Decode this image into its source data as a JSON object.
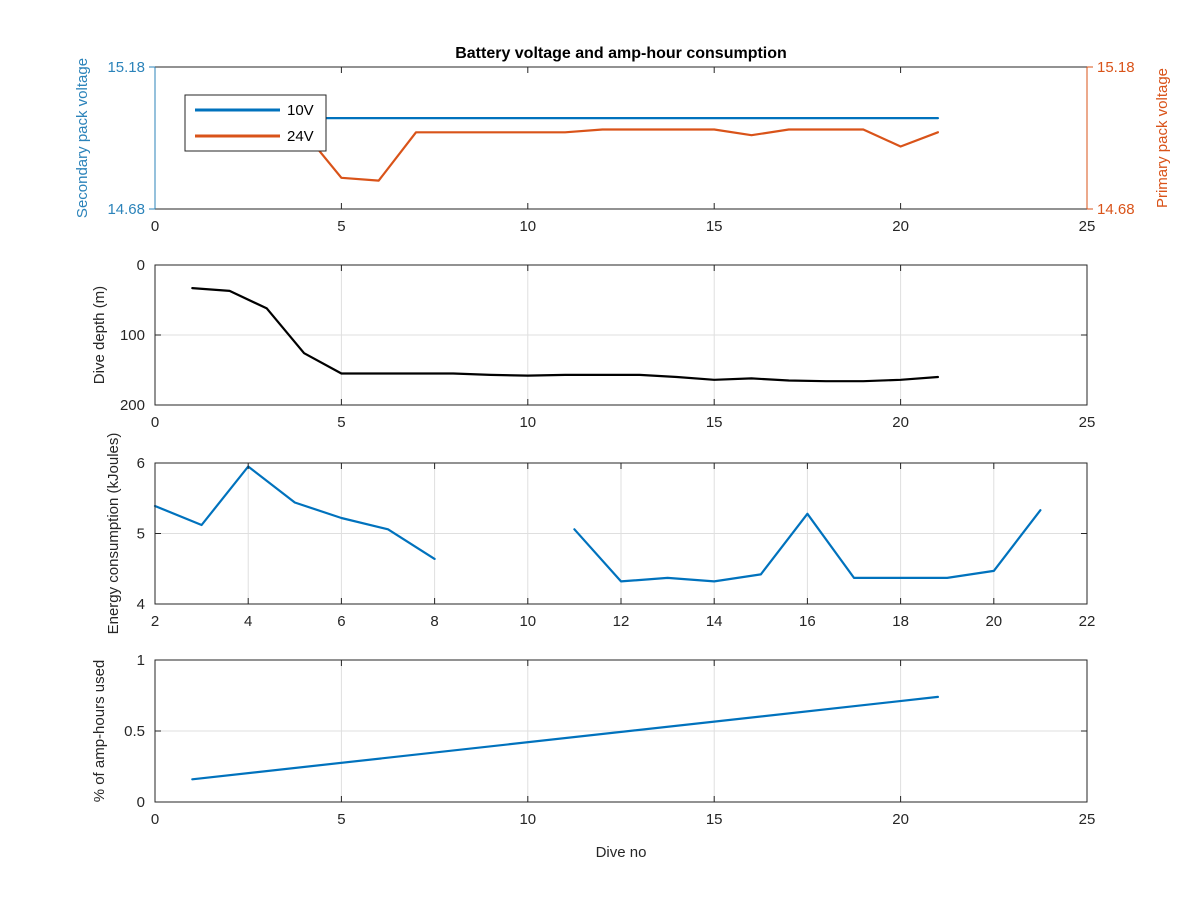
{
  "figure": {
    "background": "#ffffff",
    "axis_color": "#262626",
    "grid_color": "#dfdfdf"
  },
  "chart_data": [
    {
      "type": "line",
      "title": "Battery voltage and amp-hour consumption",
      "xlim": [
        0,
        25
      ],
      "xticks": [
        "0",
        "5",
        "10",
        "15",
        "20",
        "25"
      ],
      "grid": false,
      "legend": {
        "placement": "top-left",
        "entries": [
          "10V",
          "24V"
        ]
      },
      "left_axis": {
        "label": "Secondary pack voltage",
        "ylim": [
          14.68,
          15.18
        ],
        "ticks": [
          "14.68",
          "15.18"
        ],
        "color": "#2b83ba"
      },
      "right_axis": {
        "label": "Primary pack voltage",
        "ylim": [
          14.68,
          15.18
        ],
        "ticks": [
          "14.68",
          "15.18"
        ],
        "color": "#d95319"
      },
      "series": [
        {
          "name": "10V",
          "color": "#0072bd",
          "axis": "left",
          "x": [
            1,
            2,
            3,
            4,
            5,
            6,
            7,
            8,
            9,
            10,
            11,
            12,
            13,
            14,
            15,
            16,
            17,
            18,
            19,
            20,
            21
          ],
          "y": [
            15.0,
            15.0,
            15.0,
            15.0,
            15.0,
            15.0,
            15.0,
            15.0,
            15.0,
            15.0,
            15.0,
            15.0,
            15.0,
            15.0,
            15.0,
            15.0,
            15.0,
            15.0,
            15.0,
            15.0,
            15.0
          ]
        },
        {
          "name": "24V",
          "color": "#d95319",
          "axis": "right",
          "x": [
            1,
            2,
            3,
            4,
            5,
            6,
            7,
            8,
            9,
            10,
            11,
            12,
            13,
            14,
            15,
            16,
            17,
            18,
            19,
            20,
            21
          ],
          "y": [
            14.95,
            14.95,
            14.95,
            14.95,
            14.79,
            14.78,
            14.95,
            14.95,
            14.95,
            14.95,
            14.95,
            14.96,
            14.96,
            14.96,
            14.96,
            14.94,
            14.96,
            14.96,
            14.96,
            14.9,
            14.95
          ]
        }
      ]
    },
    {
      "type": "line",
      "ylabel": "Dive depth (m)",
      "xlim": [
        0,
        25
      ],
      "ylim": [
        0,
        200
      ],
      "y_reversed": true,
      "xticks": [
        "0",
        "5",
        "10",
        "15",
        "20",
        "25"
      ],
      "yticks": [
        "0",
        "100",
        "200"
      ],
      "grid": true,
      "series": [
        {
          "color": "#000000",
          "x": [
            1,
            2,
            3,
            4,
            5,
            6,
            7,
            8,
            9,
            10,
            11,
            12,
            13,
            14,
            15,
            16,
            17,
            18,
            19,
            20,
            21
          ],
          "y": [
            33,
            37,
            62,
            126,
            155,
            155,
            155,
            155,
            157,
            158,
            157,
            157,
            157,
            160,
            164,
            162,
            165,
            166,
            166,
            164,
            160
          ]
        }
      ]
    },
    {
      "type": "line",
      "ylabel": "Energy consumption (kJoules)",
      "xlim": [
        2,
        22
      ],
      "ylim": [
        4,
        6
      ],
      "xticks": [
        "2",
        "4",
        "6",
        "8",
        "10",
        "12",
        "14",
        "16",
        "18",
        "20",
        "22"
      ],
      "yticks": [
        "4",
        "5",
        "6"
      ],
      "grid": true,
      "series": [
        {
          "color": "#0072bd",
          "segments": [
            {
              "x": [
                2,
                3,
                4,
                5,
                6,
                7,
                8
              ],
              "y": [
                5.39,
                5.12,
                5.95,
                5.44,
                5.22,
                5.06,
                4.64
              ]
            },
            {
              "x": [
                11,
                12,
                13,
                14,
                15,
                16,
                17,
                18,
                19,
                20,
                21
              ],
              "y": [
                5.06,
                4.32,
                4.37,
                4.32,
                4.42,
                5.28,
                4.37,
                4.37,
                4.37,
                4.47,
                5.33
              ]
            }
          ]
        }
      ]
    },
    {
      "type": "line",
      "xlabel": "Dive no",
      "ylabel": "% of amp-hours used",
      "xlim": [
        0,
        25
      ],
      "ylim": [
        0,
        1
      ],
      "xticks": [
        "0",
        "5",
        "10",
        "15",
        "20",
        "25"
      ],
      "yticks": [
        "0",
        "0.5",
        "1"
      ],
      "grid": true,
      "series": [
        {
          "color": "#0072bd",
          "x": [
            1,
            21
          ],
          "y": [
            0.16,
            0.74
          ]
        }
      ]
    }
  ]
}
